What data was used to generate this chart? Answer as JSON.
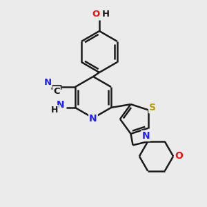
{
  "background_color": "#ebebeb",
  "bond_color": "#1a1a1a",
  "bond_width": 1.8,
  "atom_colors": {
    "C": "#1a1a1a",
    "N": "#2020ff",
    "O": "#ee1111",
    "S": "#b8a000",
    "H": "#1a1a1a"
  },
  "figsize": [
    3.0,
    3.0
  ],
  "dpi": 100
}
